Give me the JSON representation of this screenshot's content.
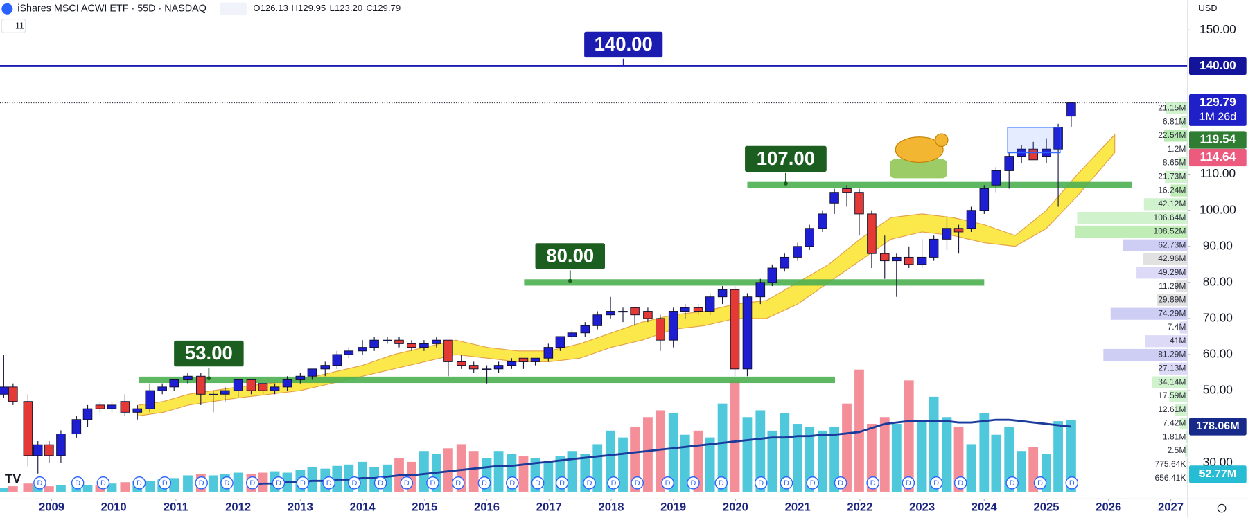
{
  "chart_data": {
    "type": "candlestick",
    "title": "iShares MSCI ACWI ETF · 55D · NASDAQ",
    "ohlc_legend": [
      "O126.13",
      "H129.95",
      "L123.20",
      "C129.79"
    ],
    "indicator_count": "11",
    "currency": "USD",
    "up_color": "#1e1ed2",
    "down_color": "#e53935",
    "x": [
      2008.23,
      2008.38,
      2008.62,
      2008.78,
      2008.96,
      2009.15,
      2009.4,
      2009.58,
      2009.78,
      2009.97,
      2010.18,
      2010.38,
      2010.58,
      2010.78,
      2010.97,
      2011.19,
      2011.4,
      2011.6,
      2011.79,
      2012.0,
      2012.21,
      2012.4,
      2012.59,
      2012.79,
      2013.0,
      2013.19,
      2013.4,
      2013.59,
      2013.78,
      2014.0,
      2014.19,
      2014.4,
      2014.59,
      2014.79,
      2014.99,
      2015.19,
      2015.38,
      2015.59,
      2015.79,
      2016.0,
      2016.19,
      2016.4,
      2016.59,
      2016.78,
      2016.99,
      2017.18,
      2017.37,
      2017.58,
      2017.78,
      2017.99,
      2018.19,
      2018.38,
      2018.59,
      2018.79,
      2019.0,
      2019.19,
      2019.4,
      2019.59,
      2019.79,
      2019.99,
      2020.19,
      2020.4,
      2020.59,
      2020.79,
      2021.0,
      2021.19,
      2021.4,
      2021.59,
      2021.79,
      2021.99,
      2022.19,
      2022.4,
      2022.59,
      2022.79,
      2023.0,
      2023.19,
      2023.4,
      2023.59,
      2023.79,
      2024.0,
      2024.19,
      2024.4,
      2024.6,
      2024.79,
      2025.0,
      2025.19,
      2025.4
    ],
    "open": [
      49,
      51,
      47,
      32,
      35,
      32,
      38,
      42,
      46,
      45,
      47,
      44,
      45,
      50,
      51,
      53,
      54,
      49,
      49,
      50,
      53,
      52,
      50,
      51,
      53,
      54,
      56,
      57,
      60,
      61,
      62,
      64,
      64,
      63,
      62,
      63,
      64,
      58,
      57,
      56,
      56,
      57,
      59,
      58,
      59,
      62,
      65,
      66,
      68,
      71,
      72,
      73,
      72,
      70,
      64,
      72,
      73,
      72,
      76,
      78,
      56,
      76,
      80,
      84,
      87,
      90,
      95,
      102,
      106,
      105,
      99,
      88,
      86,
      87,
      85,
      87,
      92,
      95,
      95,
      100,
      107,
      111,
      115,
      117,
      115,
      117,
      126.13
    ],
    "high": [
      60,
      52,
      49,
      36,
      36,
      39,
      43,
      46,
      47,
      47,
      49,
      46,
      52,
      52,
      53,
      55,
      55,
      50,
      51,
      53,
      53,
      52,
      52,
      54,
      55,
      56,
      58,
      61,
      62,
      64,
      65,
      65,
      65,
      64,
      64,
      65,
      64,
      60,
      58,
      57,
      58,
      59,
      59,
      59,
      63,
      65,
      67,
      69,
      72,
      76,
      73,
      73,
      73,
      71,
      73,
      74,
      74,
      77,
      79,
      79,
      77,
      81,
      85,
      88,
      91,
      96,
      100,
      106,
      107,
      106,
      100,
      93,
      88,
      90,
      92,
      93,
      98,
      96,
      101,
      107,
      112,
      116,
      118,
      119,
      120,
      124,
      129.95
    ],
    "low": [
      48,
      46,
      29,
      27,
      30,
      30,
      37,
      40,
      44,
      44,
      43,
      42,
      44,
      49,
      50,
      52,
      46,
      44,
      47,
      48,
      49,
      49,
      49,
      50,
      52,
      53,
      54,
      56,
      59,
      60,
      61,
      63,
      62,
      61,
      61,
      62,
      54,
      56,
      55,
      52,
      55,
      56,
      56,
      57,
      58,
      61,
      64,
      65,
      67,
      70,
      69,
      68,
      69,
      61,
      62,
      70,
      71,
      71,
      74,
      54,
      54,
      74,
      79,
      83,
      86,
      89,
      94,
      99,
      101,
      93,
      84,
      81,
      76,
      84,
      84,
      86,
      89,
      88,
      94,
      99,
      105,
      106,
      113,
      114,
      113,
      101,
      123.2
    ],
    "close": [
      51,
      47,
      32,
      35,
      32,
      38,
      42,
      45,
      45,
      46,
      44,
      45,
      50,
      51,
      53,
      54,
      49,
      49,
      50,
      53,
      50,
      50,
      51,
      53,
      54,
      56,
      57,
      60,
      61,
      62,
      64,
      64,
      63,
      62,
      63,
      64,
      58,
      57,
      56,
      56,
      57,
      58,
      58,
      59,
      62,
      65,
      66,
      68,
      71,
      72,
      72,
      71,
      70,
      64,
      72,
      73,
      72,
      76,
      78,
      56,
      76,
      80,
      84,
      87,
      90,
      95,
      99,
      105,
      105,
      99,
      88,
      86,
      87,
      85,
      87,
      92,
      95,
      94,
      100,
      106,
      111,
      115,
      117,
      114,
      117,
      123,
      129.79
    ],
    "xlim": [
      2008.17,
      2027.27
    ],
    "xticks": [
      2009,
      2010,
      2011,
      2012,
      2013,
      2014,
      2015,
      2016,
      2017,
      2018,
      2019,
      2020,
      2021,
      2022,
      2023,
      2024,
      2025,
      2026,
      2027
    ],
    "ylim": [
      20,
      158.3
    ],
    "yticks": [
      {
        "value": 150,
        "label": "150.00"
      },
      {
        "value": 110,
        "label": "110.00"
      },
      {
        "value": 100,
        "label": "100.00"
      },
      {
        "value": 90,
        "label": "90.00"
      },
      {
        "value": 80,
        "label": "80.00"
      },
      {
        "value": 70,
        "label": "70.00"
      },
      {
        "value": 60,
        "label": "60.00"
      },
      {
        "value": 50,
        "label": "50.00"
      },
      {
        "value": 30,
        "label": "30.00"
      }
    ],
    "volume": {
      "ylim": [
        0,
        100
      ],
      "up_color": "#4fc8dc",
      "down_color": "#f48e98",
      "ma_color": "#1a3a9c",
      "values": [
        3,
        4,
        6,
        5,
        4,
        5,
        6,
        5,
        5,
        6,
        7,
        8,
        8,
        9,
        10,
        12,
        13,
        12,
        13,
        14,
        13,
        14,
        15,
        14,
        16,
        18,
        17,
        19,
        20,
        22,
        18,
        20,
        25,
        22,
        30,
        28,
        32,
        35,
        30,
        25,
        30,
        28,
        26,
        25,
        22,
        26,
        30,
        28,
        35,
        45,
        40,
        48,
        55,
        60,
        58,
        42,
        45,
        40,
        65,
        82,
        55,
        60,
        45,
        58,
        50,
        48,
        45,
        48,
        65,
        90,
        50,
        55,
        50,
        82,
        52,
        70,
        55,
        48,
        35,
        58,
        42,
        48,
        30,
        33,
        28,
        52,
        52.77
      ],
      "ma": [
        null,
        null,
        null,
        null,
        null,
        null,
        null,
        null,
        null,
        null,
        null,
        null,
        null,
        null,
        null,
        null,
        null,
        null,
        null,
        null,
        5,
        6,
        6,
        7,
        7,
        8,
        8,
        9,
        9,
        10,
        10,
        11,
        12,
        12,
        13,
        14,
        15,
        16,
        17,
        18,
        19,
        19,
        20,
        21,
        22,
        23,
        24,
        25,
        26,
        27,
        28,
        29,
        30,
        31,
        32,
        33,
        34,
        35,
        36,
        37,
        38,
        39,
        40,
        40,
        41,
        41,
        42,
        42,
        43,
        44,
        47,
        50,
        51,
        52,
        52,
        52,
        52,
        51,
        51,
        52,
        53,
        53,
        52,
        51,
        50,
        49,
        48
      ]
    },
    "volume_badges": [
      {
        "label": "178.06M",
        "color": "#172a8a"
      },
      {
        "label": "52.77M",
        "color": "#26bcd4"
      }
    ],
    "ribbon": {
      "color": "#fbe84a",
      "edge_color": "#e3a04a",
      "x": [
        2010.4,
        2010.8,
        2011.2,
        2011.6,
        2012.0,
        2012.5,
        2013.0,
        2013.5,
        2014.0,
        2014.5,
        2015.0,
        2015.5,
        2016.0,
        2016.5,
        2017.0,
        2017.5,
        2018.0,
        2018.5,
        2019.0,
        2019.5,
        2020.0,
        2020.5,
        2021.0,
        2021.5,
        2022.0,
        2022.5,
        2023.0,
        2023.5,
        2024.0,
        2024.5,
        2025.0,
        2025.5,
        2026.1
      ],
      "upper": [
        46,
        47,
        49,
        50,
        51,
        52,
        53,
        55,
        57,
        60,
        62,
        64,
        62,
        61,
        61,
        63,
        66,
        69,
        71,
        72,
        74,
        75,
        80,
        85,
        92,
        98,
        99,
        98,
        96,
        93,
        100,
        110,
        121
      ],
      "lower": [
        43,
        44,
        46,
        47,
        48,
        49,
        50,
        52,
        54,
        56,
        58,
        60,
        59,
        58,
        58,
        59,
        62,
        64,
        67,
        68,
        70,
        70,
        74,
        80,
        86,
        92,
        94,
        93,
        91,
        90,
        95,
        104,
        116
      ]
    },
    "levels": [
      {
        "value": 53,
        "label": "53.00",
        "x": [
          2010.41,
          2021.6
        ]
      },
      {
        "value": 80,
        "label": "80.00",
        "x": [
          2016.6,
          2024.0
        ]
      },
      {
        "value": 107,
        "label": "107.00",
        "x": [
          2020.19,
          2026.37
        ]
      }
    ],
    "level_color": "#4caf50",
    "level_label_color": "#1b5e20",
    "resistance": {
      "value": 140,
      "label": "140.00",
      "color": "#1c1cb0"
    },
    "badges": [
      {
        "value": 140,
        "label": "140.00",
        "color": "#14149a"
      },
      {
        "value": 129.79,
        "label": "129.79",
        "sub": "1M 26d",
        "color": "#2020c8"
      },
      {
        "value": 119.54,
        "label": "119.54",
        "color": "#2e7d32"
      },
      {
        "value": 114.64,
        "label": "114.64",
        "color": "#ec5b7e"
      }
    ],
    "volume_profile": {
      "price": [
        128.3,
        124.5,
        120.7,
        116.9,
        113.1,
        109.3,
        105.5,
        101.7,
        97.9,
        94.1,
        90.3,
        86.5,
        82.7,
        78.9,
        75.1,
        71.3,
        67.5,
        63.7,
        59.9,
        56.1,
        52.3,
        48.5,
        44.7,
        40.9,
        37.1,
        33.3,
        29.5,
        25.7
      ],
      "values": [
        21.15,
        6.81,
        22.54,
        1.2,
        8.65,
        21.73,
        16.24,
        42.12,
        106.64,
        108.52,
        62.73,
        42.96,
        49.29,
        11.29,
        29.89,
        74.29,
        7.4,
        41,
        81.29,
        27.13,
        34.14,
        17.59,
        12.61,
        7.42,
        1.81,
        2.5,
        0.77564,
        0.65641
      ],
      "value_labels": [
        "21.15M",
        "6.81M",
        "22.54M",
        "1.2M",
        "8.65M",
        "21.73M",
        "16.24M",
        "42.12M",
        "106.64M",
        "108.52M",
        "62.73M",
        "42.96M",
        "49.29M",
        "11.29M",
        "29.89M",
        "74.29M",
        "7.4M",
        "41M",
        "81.29M",
        "27.13M",
        "34.14M",
        "17.59M",
        "12.61M",
        "7.42M",
        "1.81M",
        "2.5M",
        "775.64K",
        "656.41K"
      ],
      "colors": [
        "#c8f0c4",
        "#c8f0c4",
        "#a8e6a0",
        "#c8f0c4",
        "#c8f0c4",
        "#c8f0c4",
        "#b4eaa8",
        "#c8f0c4",
        "#c8f0c4",
        "#b4eaa8",
        "#c6c4f2",
        "#dcdcdc",
        "#d6d4f4",
        "#dcdcdc",
        "#dcdcdc",
        "#c6c4f2",
        "#d6d4f4",
        "#d6d4f4",
        "#c6c4f2",
        "#d6d4f4",
        "#c8f0c4",
        "#c8f0c4",
        "#c8f0c4",
        "#c8f0c4",
        "#c8f0c4",
        "#c8f0c4",
        "#c8f0c4",
        "#c8f0c4"
      ]
    },
    "dividends": {
      "marker": "D",
      "x": [
        2008.81,
        2009.42,
        2009.83,
        2010.41,
        2010.82,
        2011.41,
        2011.82,
        2012.23,
        2012.65,
        2013.04,
        2013.46,
        2013.87,
        2014.29,
        2014.71,
        2015.13,
        2015.54,
        2015.96,
        2016.41,
        2016.82,
        2017.21,
        2017.65,
        2018.04,
        2018.42,
        2018.91,
        2019.32,
        2019.77,
        2020.41,
        2020.82,
        2021.24,
        2021.69,
        2022.21,
        2022.78,
        2023.23,
        2023.62,
        2024.45,
        2024.9,
        2025.41
      ]
    }
  }
}
